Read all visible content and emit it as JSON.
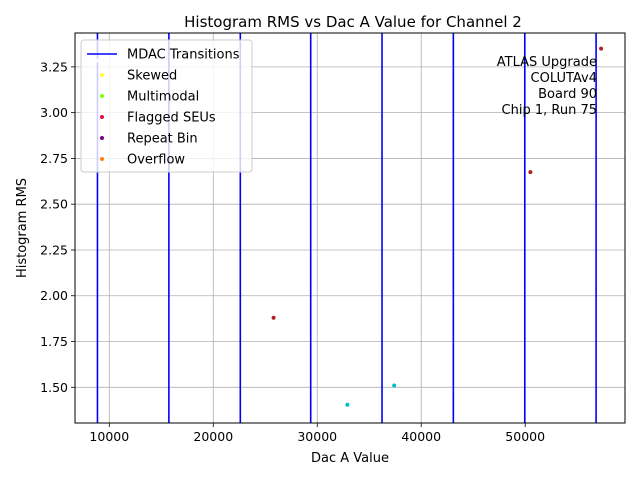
{
  "chart_data": {
    "type": "scatter",
    "title": "Histogram RMS vs Dac A Value for Channel 2",
    "xlabel": "Dac A Value",
    "ylabel": "Histogram RMS",
    "xlim": [
      6700,
      59600
    ],
    "ylim": [
      1.305,
      3.435
    ],
    "x_ticks": [
      10000,
      20000,
      30000,
      40000,
      50000
    ],
    "y_ticks": [
      1.5,
      1.75,
      2.0,
      2.25,
      2.5,
      2.75,
      3.0,
      3.25
    ],
    "x_tick_labels": [
      "10000",
      "20000",
      "30000",
      "40000",
      "50000"
    ],
    "y_tick_labels": [
      "1.50",
      "1.75",
      "2.00",
      "2.25",
      "2.50",
      "2.75",
      "3.00",
      "3.25"
    ],
    "grid": true,
    "legend_position": "upper left",
    "mdac_transitions": [
      8860,
      15730,
      22600,
      29370,
      36230,
      43090,
      49960,
      56820
    ],
    "mdac_color": "#0000ff",
    "series": [
      {
        "name": "MDAC Transitions",
        "kind": "line",
        "color": "#0000ff"
      },
      {
        "name": "Skewed",
        "kind": "point",
        "color": "#ffff33"
      },
      {
        "name": "Multimodal",
        "kind": "point",
        "color": "#7fff00"
      },
      {
        "name": "Flagged SEUs",
        "kind": "point",
        "color": "#dc143c"
      },
      {
        "name": "Repeat Bin",
        "kind": "point",
        "color": "#800080"
      },
      {
        "name": "Overflow",
        "kind": "point",
        "color": "#ff7f0e"
      }
    ],
    "points": [
      {
        "x": 8870,
        "y": 3.285,
        "color": "#e6e6fa"
      },
      {
        "x": 25800,
        "y": 1.88,
        "color": "#b22222"
      },
      {
        "x": 32900,
        "y": 1.405,
        "color": "#00bfbf"
      },
      {
        "x": 37400,
        "y": 1.51,
        "color": "#00bfbf"
      },
      {
        "x": 50500,
        "y": 2.675,
        "color": "#b22222"
      },
      {
        "x": 57300,
        "y": 3.35,
        "color": "#b22222"
      }
    ],
    "annotation_lines": [
      "ATLAS Upgrade",
      "COLUTAv4",
      "Board 90",
      "Chip 1, Run 75"
    ]
  }
}
